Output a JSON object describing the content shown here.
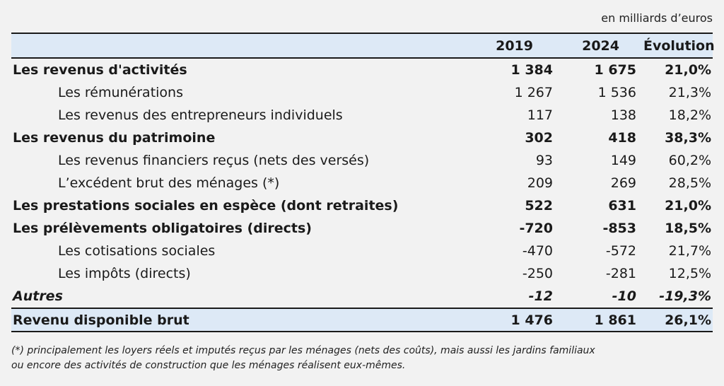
{
  "unit_label": "en milliards d’euros",
  "headers": {
    "label": "",
    "y2019": "2019",
    "y2024": "2024",
    "evolution": "Évolution"
  },
  "rows": [
    {
      "label": "Les revenus d'activités",
      "y2019": "1 384",
      "y2024": "1 675",
      "evolution": "21,0%"
    },
    {
      "label": "Les rémunérations",
      "y2019": "1 267",
      "y2024": "1 536",
      "evolution": "21,3%"
    },
    {
      "label": "Les revenus des entrepreneurs individuels",
      "y2019": "117",
      "y2024": "138",
      "evolution": "18,2%"
    },
    {
      "label": "Les revenus du patrimoine",
      "y2019": "302",
      "y2024": "418",
      "evolution": "38,3%"
    },
    {
      "label": "Les revenus financiers reçus (nets des versés)",
      "y2019": "93",
      "y2024": "149",
      "evolution": "60,2%"
    },
    {
      "label": "L’excédent brut des ménages (*)",
      "y2019": "209",
      "y2024": "269",
      "evolution": "28,5%"
    },
    {
      "label": "Les prestations sociales en espèce (dont retraites)",
      "y2019": "522",
      "y2024": "631",
      "evolution": "21,0%"
    },
    {
      "label": "Les prélèvements obligatoires (directs)",
      "y2019": "-720",
      "y2024": "-853",
      "evolution": "18,5%"
    },
    {
      "label": "Les cotisations sociales",
      "y2019": "-470",
      "y2024": "-572",
      "evolution": "21,7%"
    },
    {
      "label": "Les impôts (directs)",
      "y2019": "-250",
      "y2024": "-281",
      "evolution": "12,5%"
    },
    {
      "label": "Autres",
      "y2019": "-12",
      "y2024": "-10",
      "evolution": "-19,3%"
    },
    {
      "label": "Revenu disponible brut",
      "y2019": "1 476",
      "y2024": "1 861",
      "evolution": "26,1%"
    }
  ],
  "footnote": {
    "line1": "(*) principalement les loyers réels et imputés reçus par les ménages (nets des coûts), mais aussi les jardins familiaux",
    "line2": "ou encore des activités de construction que les ménages réalisent eux-mêmes."
  }
}
